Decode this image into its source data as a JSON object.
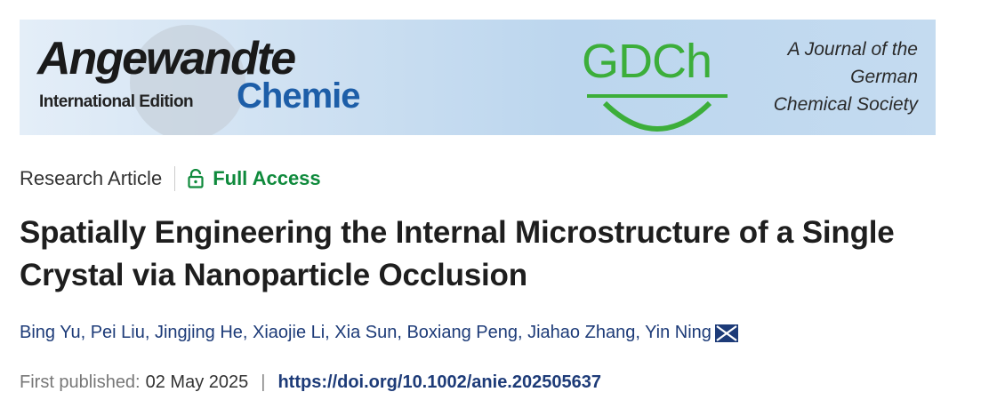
{
  "banner": {
    "logo_main": "Angewandte",
    "logo_edition": "International Edition",
    "logo_sub": "Chemie",
    "society_logo": "GDCh",
    "society_lines": [
      "A Journal of the",
      "German",
      "Chemical Society"
    ]
  },
  "article": {
    "type": "Research Article",
    "access_icon": "unlock-icon",
    "access": "Full Access",
    "title_lines": [
      "Spatially Engineering the Internal Microstructure of a Single",
      "Crystal via Nanoparticle Occlusion"
    ],
    "authors": "Bing Yu, Pei Liu, Jingjing He, Xiaojie Li, Xia Sun, Boxiang Peng, Jiahao Zhang, Yin Ning",
    "corresponding_icon": "envelope-icon",
    "published_label": "First published:",
    "published_date": "02 May 2025",
    "doi": "https://doi.org/10.1002/anie.202505637"
  },
  "colors": {
    "access": "#0f8a3c",
    "link": "#1d3b78",
    "gdch": "#3cae3a",
    "chemie": "#1d5ea8"
  }
}
